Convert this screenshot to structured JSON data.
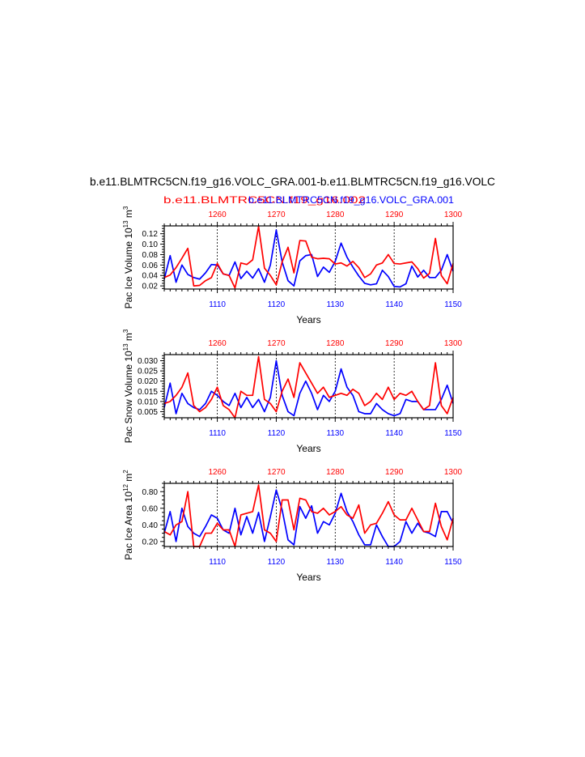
{
  "title": "b.e11.BLMTRC5CN.f19_g16.VOLC_GRA.001-b.e11.BLMTRC5CN.f19_g16.VOLC",
  "subtitle_left": "b.e11.BLMTRC5CN.f19_g16.002",
  "subtitle_right": "b.e11.BLMTRC5CN.f19_g16.VOLC_GRA.001",
  "colors": {
    "case_a": "#0000ff",
    "case_b": "#ff0000",
    "axis": "#000000"
  },
  "chart_data": [
    {
      "type": "line",
      "ylabel_base": "Pac Ice Volume 10",
      "ylabel_exp1": "13",
      "ylabel_unit": " m",
      "ylabel_exp2": "3",
      "xlabel": "Years",
      "ylim": [
        0.014,
        0.135
      ],
      "yticks": [
        0.02,
        0.04,
        0.06,
        0.08,
        0.1,
        0.12
      ],
      "ytick_labels": [
        "0.02",
        "0.04",
        "0.06",
        "0.08",
        "0.10",
        "0.12"
      ],
      "x_bottom": {
        "range": [
          1101,
          1150
        ],
        "ticks": [
          1110,
          1120,
          1130,
          1140,
          1150
        ]
      },
      "x_top": {
        "range": [
          1251,
          1300
        ],
        "ticks": [
          1260,
          1270,
          1280,
          1290,
          1300
        ]
      },
      "series": [
        {
          "values": [
            0.033,
            0.078,
            0.027,
            0.06,
            0.042,
            0.036,
            0.033,
            0.045,
            0.061,
            0.06,
            0.043,
            0.04,
            0.066,
            0.034,
            0.048,
            0.035,
            0.053,
            0.027,
            0.06,
            0.127,
            0.066,
            0.03,
            0.02,
            0.068,
            0.078,
            0.08,
            0.038,
            0.056,
            0.046,
            0.067,
            0.102,
            0.075,
            0.056,
            0.039,
            0.025,
            0.022,
            0.024,
            0.05,
            0.038,
            0.019,
            0.018,
            0.024,
            0.058,
            0.037,
            0.05,
            0.036,
            0.036,
            0.05,
            0.08,
            0.048
          ]
        },
        {
          "values": [
            0.036,
            0.041,
            0.055,
            0.073,
            0.092,
            0.02,
            0.021,
            0.03,
            0.036,
            0.063,
            0.043,
            0.04,
            0.016,
            0.064,
            0.061,
            0.07,
            0.134,
            0.054,
            0.04,
            0.022,
            0.066,
            0.094,
            0.045,
            0.107,
            0.106,
            0.075,
            0.072,
            0.073,
            0.072,
            0.062,
            0.064,
            0.058,
            0.067,
            0.055,
            0.036,
            0.043,
            0.06,
            0.064,
            0.08,
            0.063,
            0.062,
            0.064,
            0.066,
            0.053,
            0.035,
            0.044,
            0.111,
            0.04,
            0.024,
            0.063
          ]
        }
      ]
    },
    {
      "type": "line",
      "ylabel_base": "Pac Snow Volume 10",
      "ylabel_exp1": "13",
      "ylabel_unit": " m",
      "ylabel_exp2": "3",
      "xlabel": "Years",
      "ylim": [
        0.002,
        0.033
      ],
      "yticks": [
        0.005,
        0.01,
        0.015,
        0.02,
        0.025,
        0.03
      ],
      "ytick_labels": [
        "0.005",
        "0.010",
        "0.015",
        "0.020",
        "0.025",
        "0.030"
      ],
      "x_bottom": {
        "range": [
          1101,
          1150
        ],
        "ticks": [
          1110,
          1120,
          1130,
          1140,
          1150
        ]
      },
      "x_top": {
        "range": [
          1251,
          1300
        ],
        "ticks": [
          1260,
          1270,
          1280,
          1290,
          1300
        ]
      },
      "series": [
        {
          "values": [
            0.007,
            0.019,
            0.004,
            0.014,
            0.009,
            0.007,
            0.006,
            0.009,
            0.015,
            0.013,
            0.01,
            0.008,
            0.014,
            0.007,
            0.012,
            0.007,
            0.011,
            0.005,
            0.012,
            0.03,
            0.013,
            0.005,
            0.003,
            0.014,
            0.02,
            0.014,
            0.006,
            0.013,
            0.01,
            0.015,
            0.026,
            0.017,
            0.013,
            0.005,
            0.004,
            0.004,
            0.009,
            0.006,
            0.004,
            0.003,
            0.004,
            0.011,
            0.01,
            0.01,
            0.006,
            0.006,
            0.006,
            0.011,
            0.018,
            0.009
          ]
        },
        {
          "values": [
            0.009,
            0.01,
            0.013,
            0.017,
            0.024,
            0.008,
            0.005,
            0.007,
            0.011,
            0.017,
            0.008,
            0.006,
            0.002,
            0.015,
            0.013,
            0.013,
            0.032,
            0.011,
            0.009,
            0.005,
            0.015,
            0.021,
            0.012,
            0.029,
            0.024,
            0.019,
            0.014,
            0.017,
            0.012,
            0.013,
            0.014,
            0.013,
            0.016,
            0.014,
            0.008,
            0.01,
            0.014,
            0.011,
            0.017,
            0.011,
            0.014,
            0.013,
            0.015,
            0.01,
            0.006,
            0.008,
            0.029,
            0.008,
            0.004,
            0.012
          ]
        }
      ]
    },
    {
      "type": "line",
      "ylabel_base": "Pac Ice Area 10",
      "ylabel_exp1": "12",
      "ylabel_unit": " m",
      "ylabel_exp2": "2",
      "xlabel": "Years",
      "ylim": [
        0.14,
        0.9
      ],
      "yticks": [
        0.2,
        0.4,
        0.6,
        0.8
      ],
      "ytick_labels": [
        "0.20",
        "0.40",
        "0.60",
        "0.80"
      ],
      "x_bottom": {
        "range": [
          1101,
          1150
        ],
        "ticks": [
          1110,
          1120,
          1130,
          1140,
          1150
        ]
      },
      "x_top": {
        "range": [
          1251,
          1300
        ],
        "ticks": [
          1260,
          1270,
          1280,
          1290,
          1300
        ]
      },
      "series": [
        {
          "values": [
            0.3,
            0.56,
            0.2,
            0.6,
            0.38,
            0.3,
            0.26,
            0.38,
            0.52,
            0.48,
            0.34,
            0.3,
            0.6,
            0.28,
            0.5,
            0.3,
            0.55,
            0.2,
            0.5,
            0.82,
            0.58,
            0.22,
            0.16,
            0.62,
            0.48,
            0.63,
            0.3,
            0.44,
            0.4,
            0.54,
            0.78,
            0.56,
            0.44,
            0.28,
            0.16,
            0.16,
            0.4,
            0.26,
            0.14,
            0.14,
            0.2,
            0.44,
            0.3,
            0.42,
            0.32,
            0.3,
            0.26,
            0.56,
            0.56,
            0.42
          ]
        },
        {
          "values": [
            0.32,
            0.28,
            0.4,
            0.44,
            0.8,
            0.14,
            0.14,
            0.3,
            0.3,
            0.42,
            0.34,
            0.34,
            0.14,
            0.52,
            0.54,
            0.56,
            0.88,
            0.34,
            0.3,
            0.2,
            0.7,
            0.7,
            0.34,
            0.72,
            0.7,
            0.56,
            0.54,
            0.6,
            0.52,
            0.56,
            0.62,
            0.52,
            0.48,
            0.64,
            0.3,
            0.4,
            0.42,
            0.54,
            0.68,
            0.52,
            0.46,
            0.46,
            0.6,
            0.46,
            0.32,
            0.32,
            0.66,
            0.38,
            0.22,
            0.48
          ]
        }
      ]
    }
  ]
}
